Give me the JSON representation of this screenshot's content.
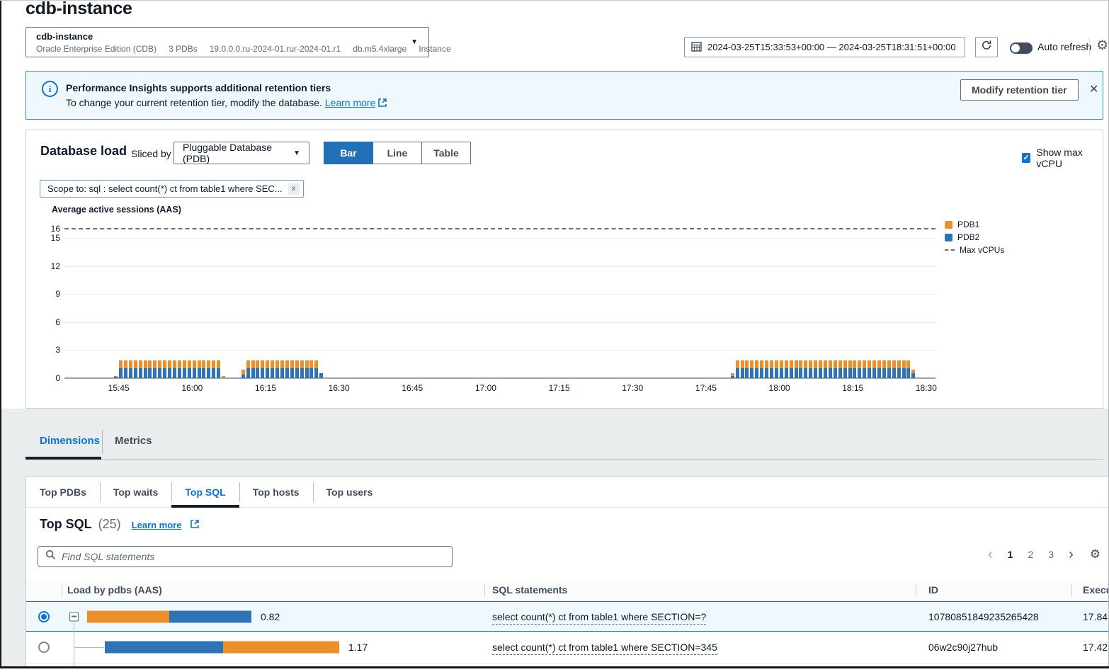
{
  "page": {
    "title": "cdb-instance"
  },
  "instance_selector": {
    "name": "cdb-instance",
    "details": [
      "Oracle Enterprise Edition (CDB)",
      "3 PDBs",
      "19.0.0.0.ru-2024-01.rur-2024-01.r1",
      "db.m5.4xlarge",
      "Instance"
    ]
  },
  "time_controls": {
    "range": "2024-03-25T15:33:53+00:00 — 2024-03-25T18:31:51+00:00",
    "auto_refresh_label": "Auto refresh"
  },
  "banner": {
    "title": "Performance Insights supports additional retention tiers",
    "body": "To change your current retention tier, modify the database.",
    "link_label": "Learn more",
    "button_label": "Modify retention tier",
    "close_label": "✕"
  },
  "db_load": {
    "title": "Database load",
    "sliced_by_label": "Sliced by",
    "slice_value": "Pluggable Database (PDB)",
    "view_options": [
      "Bar",
      "Line",
      "Table"
    ],
    "active_view": "Bar",
    "show_max_vcpu_label": "Show max vCPU",
    "show_max_vcpu_checked": true,
    "scope_tag": "Scope to: sql : select count(*) ct from table1 where SEC...",
    "scope_remove_label": "x"
  },
  "chart_data": {
    "type": "bar",
    "stacked": true,
    "title": "Average active sessions (AAS)",
    "ylabel": "Average active sessions (AAS)",
    "ylim": [
      0,
      16
    ],
    "yticks": [
      0,
      3,
      6,
      9,
      12,
      15,
      16
    ],
    "max_vcpus": 16,
    "x_start": "15:33:53",
    "x_end": "18:31:51",
    "x_total_minutes": 178,
    "xticks": [
      {
        "min": 11.1,
        "label": "15:45"
      },
      {
        "min": 26.1,
        "label": "16:00"
      },
      {
        "min": 41.1,
        "label": "16:15"
      },
      {
        "min": 56.1,
        "label": "16:30"
      },
      {
        "min": 71.1,
        "label": "16:45"
      },
      {
        "min": 86.1,
        "label": "17:00"
      },
      {
        "min": 101.1,
        "label": "17:15"
      },
      {
        "min": 116.1,
        "label": "17:30"
      },
      {
        "min": 131.1,
        "label": "17:45"
      },
      {
        "min": 146.1,
        "label": "18:00"
      },
      {
        "min": 161.1,
        "label": "18:15"
      },
      {
        "min": 176.1,
        "label": "18:30"
      }
    ],
    "series": [
      {
        "name": "PDB1",
        "color": "#ec8f2b"
      },
      {
        "name": "PDB2",
        "color": "#2e72b8"
      }
    ],
    "legend": [
      {
        "label": "PDB1",
        "swatch": "square",
        "color": "#ec8f2b"
      },
      {
        "label": "PDB2",
        "swatch": "square",
        "color": "#2e72b8"
      },
      {
        "label": "Max vCPUs",
        "swatch": "dashed-line",
        "color": "#687078"
      }
    ],
    "bar_clusters": [
      {
        "lead": {
          "min": 10,
          "PDB1": 0.1,
          "PDB2": 0.12
        },
        "from_min": 11,
        "to_min": 31,
        "PDB1": 0.85,
        "PDB2": 1.05,
        "tail": {
          "min": 32,
          "PDB1": 0.25,
          "PDB2": 0
        }
      },
      {
        "lead": {
          "min": 36,
          "PDB1": 0.55,
          "PDB2": 0.35
        },
        "from_min": 37,
        "to_min": 51,
        "PDB1": 0.85,
        "PDB2": 1.05,
        "tail": {
          "min": 52,
          "PDB1": 0,
          "PDB2": 0.5
        }
      },
      {
        "lead": {
          "min": 136,
          "PDB1": 0.35,
          "PDB2": 0.2
        },
        "from_min": 137,
        "to_min": 172,
        "PDB1": 0.85,
        "PDB2": 1.05,
        "tail": {
          "min": 173,
          "PDB1": 0.35,
          "PDB2": 0.55
        }
      }
    ]
  },
  "tabs": {
    "primary": [
      {
        "label": "Dimensions",
        "active": true
      },
      {
        "label": "Metrics",
        "active": false
      }
    ],
    "secondary": [
      {
        "label": "Top PDBs",
        "active": false
      },
      {
        "label": "Top waits",
        "active": false
      },
      {
        "label": "Top SQL",
        "active": true
      },
      {
        "label": "Top hosts",
        "active": false
      },
      {
        "label": "Top users",
        "active": false
      }
    ]
  },
  "top_sql": {
    "title": "Top SQL",
    "count": "(25)",
    "learn_more_label": "Learn more",
    "search_placeholder": "Find SQL statements",
    "pagination": {
      "prev": "‹",
      "pages": [
        "1",
        "2",
        "3"
      ],
      "active": "1",
      "next": "›"
    },
    "table": {
      "columns": [
        "Load by pdbs (AAS)",
        "SQL statements",
        "ID",
        "Execu"
      ],
      "rows": [
        {
          "selected": true,
          "expandable": true,
          "load_value": "0.82",
          "load_segments": [
            {
              "series": "PDB1",
              "aas": 0.41
            },
            {
              "series": "PDB2",
              "aas": 0.41
            }
          ],
          "sql": "select count(*) ct from table1 where SECTION=?",
          "id": "10780851849235265428",
          "executions": "17.84"
        },
        {
          "selected": false,
          "expandable": false,
          "load_value": "1.17",
          "load_segments": [
            {
              "series": "PDB2",
              "aas": 0.59
            },
            {
              "series": "PDB1",
              "aas": 0.58
            }
          ],
          "sql": "select count(*) ct from table1 where SECTION=345",
          "id": "06w2c90j27hub",
          "executions": "17.42"
        }
      ]
    }
  },
  "colors": {
    "accent": "#0972d3",
    "pdb1": "#ec8f2b",
    "pdb2": "#2e72b8",
    "max_vcpu_line": "#687078",
    "selected_row_bg": "#f0f8fd"
  }
}
